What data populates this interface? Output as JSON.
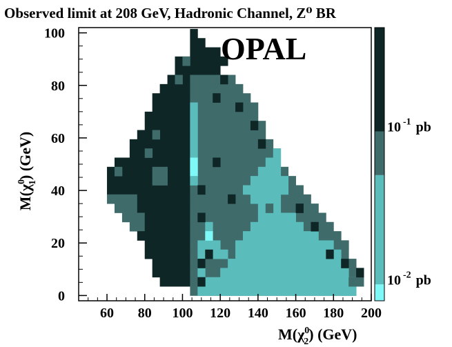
{
  "chart_data": {
    "type": "heatmap",
    "title": "Observed limit at 208 GeV, Hadronic Channel, Z⁰ BR",
    "watermark": "OPAL",
    "xlabel": {
      "main": "M(χ",
      "sup": "0",
      "sub": "2",
      "tail": ") (GeV)"
    },
    "ylabel": {
      "main": "M(χ",
      "sup": "0",
      "sub": "1",
      "tail": ") (GeV)"
    },
    "xlim": [
      45,
      200
    ],
    "ylim": [
      -2,
      102
    ],
    "x_ticks": [
      "60",
      "80",
      "100",
      "120",
      "140",
      "160",
      "180",
      "200"
    ],
    "y_ticks": [
      "0",
      "20",
      "40",
      "60",
      "80",
      "100"
    ],
    "bin_width": 4,
    "bin_height": 3.5,
    "colorbar": {
      "labels": [
        {
          "base": "10",
          "exp": "-1",
          "unit": "pb",
          "at": 0.64
        },
        {
          "base": "10",
          "exp": "-2",
          "unit": "pb",
          "at": 0.08
        }
      ],
      "segments": [
        {
          "from": 0.0,
          "to": 0.06,
          "color": "#7ff8f8"
        },
        {
          "from": 0.06,
          "to": 0.46,
          "color": "#5bbcbc"
        },
        {
          "from": 0.46,
          "to": 0.62,
          "color": "#3f6b6b"
        },
        {
          "from": 0.62,
          "to": 1.0,
          "color": "#0f2626"
        }
      ]
    },
    "levels": {
      "a": {
        "color": "#0f2626",
        "label": "above 10^-1 pb"
      },
      "b": {
        "color": "#3f6b6b",
        "label": "about 10^-1 pb"
      },
      "c": {
        "color": "#5bbcbc",
        "label": "between 10^-2 and 10^-1 pb"
      },
      "d": {
        "color": "#7ff8f8",
        "label": "about 10^-2 pb"
      }
    },
    "cells": [
      {
        "x0": 104,
        "x1": 108,
        "y": 98,
        "v": "a"
      },
      {
        "x0": 104,
        "x1": 112,
        "y": 94.5,
        "v": "a"
      },
      {
        "x0": 104,
        "x1": 120,
        "y": 91,
        "v": "a"
      },
      {
        "x0": 96,
        "x1": 124,
        "y": 87.5,
        "v": "a"
      },
      {
        "x0": 96,
        "x1": 120,
        "y": 84,
        "v": "a"
      },
      {
        "x0": 92,
        "x1": 104,
        "y": 80.5,
        "v": "a"
      },
      {
        "x0": 104,
        "x1": 128,
        "y": 80.5,
        "v": "b"
      },
      {
        "x0": 88,
        "x1": 104,
        "y": 77,
        "v": "a"
      },
      {
        "x0": 104,
        "x1": 132,
        "y": 77,
        "v": "b"
      },
      {
        "x0": 84,
        "x1": 104,
        "y": 73.5,
        "v": "a"
      },
      {
        "x0": 104,
        "x1": 136,
        "y": 73.5,
        "v": "b"
      },
      {
        "x0": 84,
        "x1": 104,
        "y": 70,
        "v": "a"
      },
      {
        "x0": 104,
        "x1": 140,
        "y": 70,
        "v": "b"
      },
      {
        "x0": 80,
        "x1": 104,
        "y": 66.5,
        "v": "a"
      },
      {
        "x0": 104,
        "x1": 140,
        "y": 66.5,
        "v": "b"
      },
      {
        "x0": 80,
        "x1": 104,
        "y": 63,
        "v": "a"
      },
      {
        "x0": 104,
        "x1": 144,
        "y": 63,
        "v": "b"
      },
      {
        "x0": 76,
        "x1": 104,
        "y": 59.5,
        "v": "a"
      },
      {
        "x0": 104,
        "x1": 144,
        "y": 59.5,
        "v": "b"
      },
      {
        "x0": 72,
        "x1": 104,
        "y": 56,
        "v": "a"
      },
      {
        "x0": 104,
        "x1": 148,
        "y": 56,
        "v": "b"
      },
      {
        "x0": 72,
        "x1": 104,
        "y": 52.5,
        "v": "a"
      },
      {
        "x0": 104,
        "x1": 152,
        "y": 52.5,
        "v": "b"
      },
      {
        "x0": 64,
        "x1": 104,
        "y": 49,
        "v": "a"
      },
      {
        "x0": 104,
        "x1": 152,
        "y": 49,
        "v": "b"
      },
      {
        "x0": 60,
        "x1": 104,
        "y": 45.5,
        "v": "a"
      },
      {
        "x0": 104,
        "x1": 156,
        "y": 45.5,
        "v": "b"
      },
      {
        "x0": 60,
        "x1": 104,
        "y": 42,
        "v": "a"
      },
      {
        "x0": 104,
        "x1": 160,
        "y": 42,
        "v": "b"
      },
      {
        "x0": 60,
        "x1": 104,
        "y": 38.5,
        "v": "a"
      },
      {
        "x0": 104,
        "x1": 164,
        "y": 38.5,
        "v": "b"
      },
      {
        "x0": 60,
        "x1": 76,
        "y": 35,
        "v": "b"
      },
      {
        "x0": 76,
        "x1": 104,
        "y": 35,
        "v": "a"
      },
      {
        "x0": 104,
        "x1": 168,
        "y": 35,
        "v": "b"
      },
      {
        "x0": 64,
        "x1": 76,
        "y": 31.5,
        "v": "b"
      },
      {
        "x0": 76,
        "x1": 104,
        "y": 31.5,
        "v": "a"
      },
      {
        "x0": 104,
        "x1": 172,
        "y": 31.5,
        "v": "b"
      },
      {
        "x0": 68,
        "x1": 80,
        "y": 28,
        "v": "b"
      },
      {
        "x0": 80,
        "x1": 104,
        "y": 28,
        "v": "a"
      },
      {
        "x0": 104,
        "x1": 176,
        "y": 28,
        "v": "b"
      },
      {
        "x0": 72,
        "x1": 80,
        "y": 24.5,
        "v": "b"
      },
      {
        "x0": 80,
        "x1": 104,
        "y": 24.5,
        "v": "a"
      },
      {
        "x0": 104,
        "x1": 180,
        "y": 24.5,
        "v": "b"
      },
      {
        "x0": 76,
        "x1": 104,
        "y": 21,
        "v": "a"
      },
      {
        "x0": 104,
        "x1": 184,
        "y": 21,
        "v": "b"
      },
      {
        "x0": 80,
        "x1": 104,
        "y": 17.5,
        "v": "a"
      },
      {
        "x0": 104,
        "x1": 188,
        "y": 17.5,
        "v": "b"
      },
      {
        "x0": 80,
        "x1": 104,
        "y": 14,
        "v": "a"
      },
      {
        "x0": 104,
        "x1": 188,
        "y": 14,
        "v": "b"
      },
      {
        "x0": 84,
        "x1": 104,
        "y": 10.5,
        "v": "a"
      },
      {
        "x0": 104,
        "x1": 192,
        "y": 10.5,
        "v": "b"
      },
      {
        "x0": 84,
        "x1": 104,
        "y": 7,
        "v": "a"
      },
      {
        "x0": 104,
        "x1": 196,
        "y": 7,
        "v": "b"
      },
      {
        "x0": 88,
        "x1": 104,
        "y": 3.5,
        "v": "a"
      },
      {
        "x0": 104,
        "x1": 196,
        "y": 3.5,
        "v": "b"
      },
      {
        "x0": 104,
        "x1": 192,
        "y": 0,
        "v": "b"
      },
      {
        "x0": 104,
        "x1": 108,
        "y": 70,
        "v": "c"
      },
      {
        "x0": 104,
        "x1": 108,
        "y": 66.5,
        "v": "c"
      },
      {
        "x0": 104,
        "x1": 108,
        "y": 63,
        "v": "c"
      },
      {
        "x0": 104,
        "x1": 108,
        "y": 59.5,
        "v": "c"
      },
      {
        "x0": 104,
        "x1": 108,
        "y": 56,
        "v": "c"
      },
      {
        "x0": 104,
        "x1": 108,
        "y": 52.5,
        "v": "c"
      },
      {
        "x0": 104,
        "x1": 108,
        "y": 49,
        "v": "d"
      },
      {
        "x0": 104,
        "x1": 108,
        "y": 45.5,
        "v": "d"
      },
      {
        "x0": 104,
        "x1": 108,
        "y": 42,
        "v": "c"
      },
      {
        "x0": 148,
        "x1": 152,
        "y": 52.5,
        "v": "c"
      },
      {
        "x0": 144,
        "x1": 152,
        "y": 49,
        "v": "c"
      },
      {
        "x0": 140,
        "x1": 152,
        "y": 45.5,
        "v": "c"
      },
      {
        "x0": 136,
        "x1": 156,
        "y": 42,
        "v": "c"
      },
      {
        "x0": 132,
        "x1": 156,
        "y": 38.5,
        "v": "c"
      },
      {
        "x0": 136,
        "x1": 152,
        "y": 35,
        "v": "c"
      },
      {
        "x0": 140,
        "x1": 152,
        "y": 31.5,
        "v": "c"
      },
      {
        "x0": 140,
        "x1": 160,
        "y": 28,
        "v": "c"
      },
      {
        "x0": 136,
        "x1": 164,
        "y": 24.5,
        "v": "c"
      },
      {
        "x0": 132,
        "x1": 172,
        "y": 21,
        "v": "c"
      },
      {
        "x0": 108,
        "x1": 120,
        "y": 17.5,
        "v": "c"
      },
      {
        "x0": 128,
        "x1": 180,
        "y": 17.5,
        "v": "c"
      },
      {
        "x0": 108,
        "x1": 124,
        "y": 14,
        "v": "c"
      },
      {
        "x0": 128,
        "x1": 184,
        "y": 14,
        "v": "c"
      },
      {
        "x0": 108,
        "x1": 112,
        "y": 10.5,
        "v": "c"
      },
      {
        "x0": 124,
        "x1": 188,
        "y": 10.5,
        "v": "c"
      },
      {
        "x0": 108,
        "x1": 112,
        "y": 7,
        "v": "c"
      },
      {
        "x0": 120,
        "x1": 188,
        "y": 7,
        "v": "c"
      },
      {
        "x0": 112,
        "x1": 192,
        "y": 3.5,
        "v": "c"
      },
      {
        "x0": 108,
        "x1": 192,
        "y": 0,
        "v": "c"
      },
      {
        "x0": 112,
        "x1": 116,
        "y": 24.5,
        "v": "c"
      },
      {
        "x0": 112,
        "x1": 116,
        "y": 21,
        "v": "d"
      },
      {
        "x0": 100,
        "x1": 104,
        "y": 87.5,
        "v": "b"
      },
      {
        "x0": 96,
        "x1": 100,
        "y": 80.5,
        "v": "b"
      },
      {
        "x0": 84,
        "x1": 88,
        "y": 59.5,
        "v": "b"
      },
      {
        "x0": 80,
        "x1": 84,
        "y": 52.5,
        "v": "b"
      },
      {
        "x0": 64,
        "x1": 68,
        "y": 45.5,
        "v": "b"
      },
      {
        "x0": 84,
        "x1": 92,
        "y": 45.5,
        "v": "b"
      },
      {
        "x0": 84,
        "x1": 92,
        "y": 42,
        "v": "b"
      },
      {
        "x0": 116,
        "x1": 120,
        "y": 73.5,
        "v": "a"
      },
      {
        "x0": 128,
        "x1": 132,
        "y": 70,
        "v": "a"
      },
      {
        "x0": 136,
        "x1": 140,
        "y": 63,
        "v": "a"
      },
      {
        "x0": 140,
        "x1": 144,
        "y": 56,
        "v": "a"
      },
      {
        "x0": 116,
        "x1": 120,
        "y": 49,
        "v": "a"
      },
      {
        "x0": 108,
        "x1": 112,
        "y": 38.5,
        "v": "a"
      },
      {
        "x0": 108,
        "x1": 112,
        "y": 10.5,
        "v": "a"
      },
      {
        "x0": 108,
        "x1": 112,
        "y": 3.5,
        "v": "a"
      },
      {
        "x0": 120,
        "x1": 124,
        "y": 80.5,
        "v": "a"
      },
      {
        "x0": 112,
        "x1": 116,
        "y": 14,
        "v": "a"
      },
      {
        "x0": 108,
        "x1": 112,
        "y": 28,
        "v": "a"
      },
      {
        "x0": 144,
        "x1": 148,
        "y": 31.5,
        "v": "b"
      },
      {
        "x0": 124,
        "x1": 128,
        "y": 35,
        "v": "a"
      },
      {
        "x0": 184,
        "x1": 188,
        "y": 17.5,
        "v": "b"
      },
      {
        "x0": 188,
        "x1": 192,
        "y": 3.5,
        "v": "b"
      },
      {
        "x0": 192,
        "x1": 196,
        "y": 7,
        "v": "a"
      },
      {
        "x0": 160,
        "x1": 164,
        "y": 31.5,
        "v": "a"
      },
      {
        "x0": 168,
        "x1": 172,
        "y": 24.5,
        "v": "a"
      },
      {
        "x0": 176,
        "x1": 180,
        "y": 14,
        "v": "a"
      },
      {
        "x0": 184,
        "x1": 188,
        "y": 10.5,
        "v": "a"
      }
    ]
  }
}
